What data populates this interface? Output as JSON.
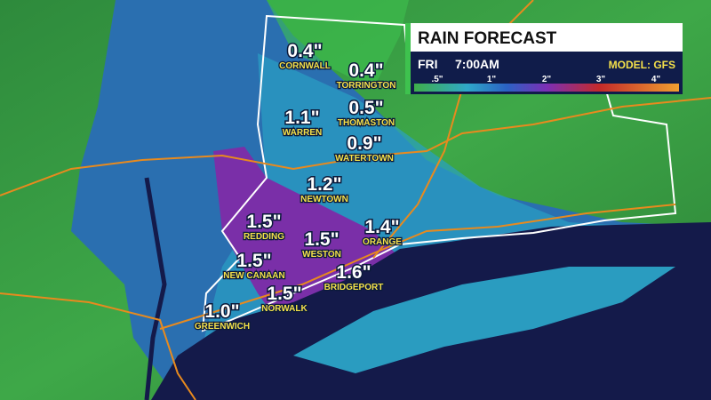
{
  "header": {
    "title": "RAIN FORECAST",
    "day": "FRI",
    "time": "7:00AM",
    "model": "MODEL: GFS"
  },
  "legend": {
    "labels": [
      ".5\"",
      "1\"",
      "2\"",
      "3\"",
      "4\""
    ]
  },
  "towns": [
    {
      "amount": "0.4\"",
      "name": "CORNWALL"
    },
    {
      "amount": "0.4\"",
      "name": "TORRINGTON"
    },
    {
      "amount": "1.1\"",
      "name": "WARREN"
    },
    {
      "amount": "0.5\"",
      "name": "THOMASTON"
    },
    {
      "amount": "0.9\"",
      "name": "WATERTOWN"
    },
    {
      "amount": "1.2\"",
      "name": "NEWTOWN"
    },
    {
      "amount": "1.5\"",
      "name": "REDDING"
    },
    {
      "amount": "1.4\"",
      "name": "ORANGE"
    },
    {
      "amount": "1.5\"",
      "name": "WESTON"
    },
    {
      "amount": "1.5\"",
      "name": "NEW CANAAN"
    },
    {
      "amount": "1.6\"",
      "name": "BRIDGEPORT"
    },
    {
      "amount": "1.5\"",
      "name": "NORWALK"
    },
    {
      "amount": "1.0\"",
      "name": "GREENWICH"
    }
  ]
}
